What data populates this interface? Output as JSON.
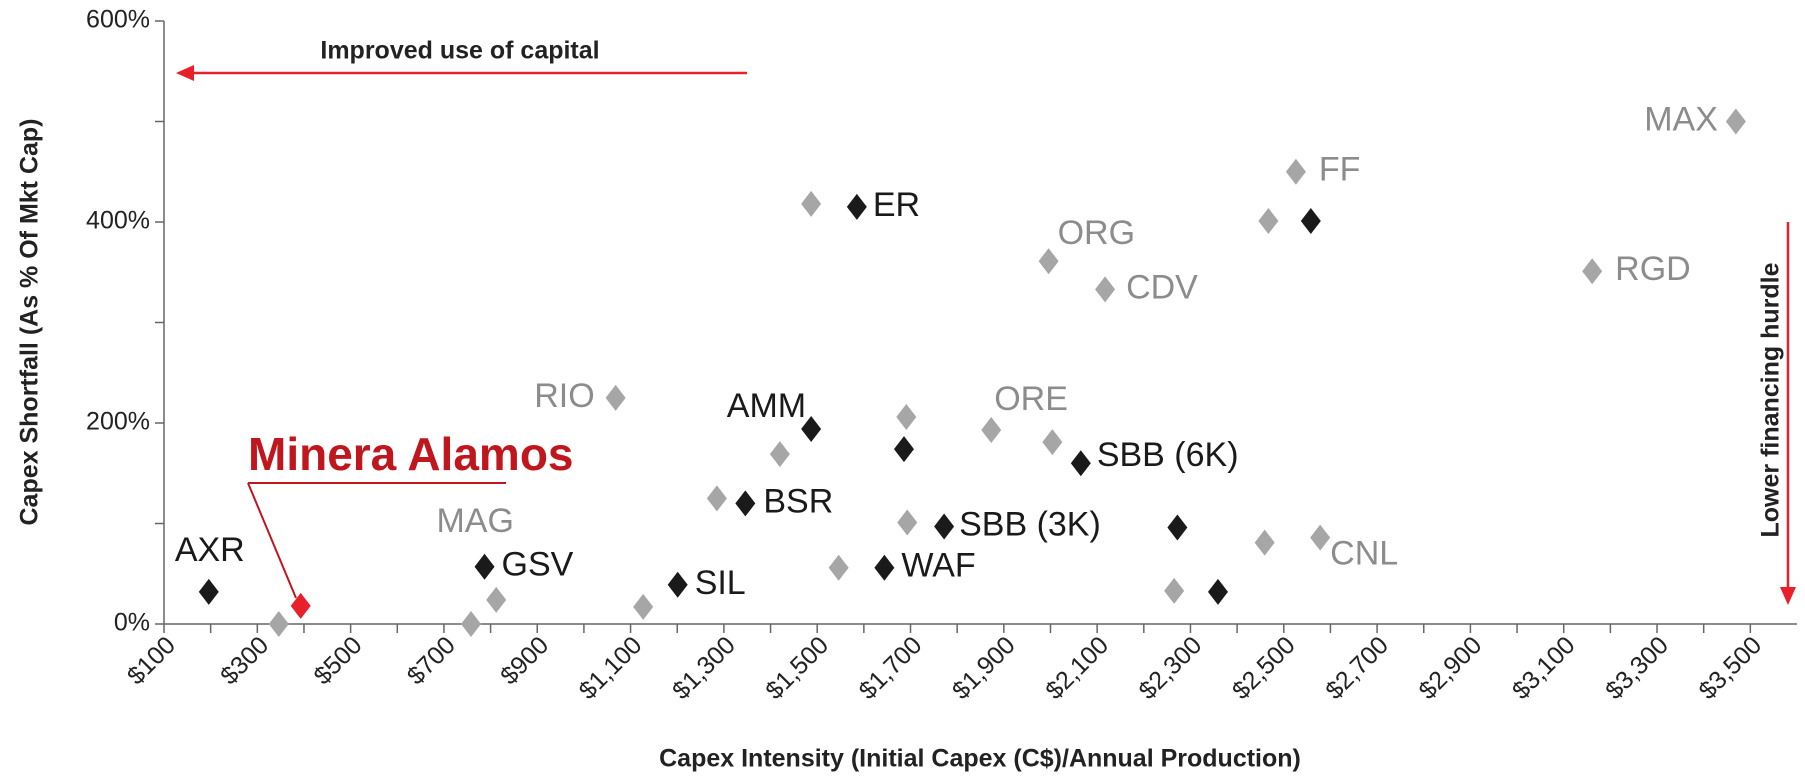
{
  "chart_data": {
    "type": "scatter",
    "xlabel": "Capex Intensity (Initial Capex (C$)/Annual Production)",
    "ylabel": "Capex Shortfall (As % Of Mkt Cap)",
    "xlim": [
      100,
      3600
    ],
    "ylim": [
      0,
      600
    ],
    "xticks": [
      {
        "value": 100,
        "label": "$100"
      },
      {
        "value": 300,
        "label": "$300"
      },
      {
        "value": 500,
        "label": "$500"
      },
      {
        "value": 700,
        "label": "$700"
      },
      {
        "value": 900,
        "label": "$900"
      },
      {
        "value": 1100,
        "label": "$1,100"
      },
      {
        "value": 1300,
        "label": "$1,300"
      },
      {
        "value": 1500,
        "label": "$1,500"
      },
      {
        "value": 1700,
        "label": "$1,700"
      },
      {
        "value": 1900,
        "label": "$1,900"
      },
      {
        "value": 2100,
        "label": "$2,100"
      },
      {
        "value": 2300,
        "label": "$2,300"
      },
      {
        "value": 2500,
        "label": "$2,500"
      },
      {
        "value": 2700,
        "label": "$2,700"
      },
      {
        "value": 2900,
        "label": "$2,900"
      },
      {
        "value": 3100,
        "label": "$3,100"
      },
      {
        "value": 3300,
        "label": "$3,300"
      },
      {
        "value": 3500,
        "label": "$3,500"
      }
    ],
    "yticks": [
      {
        "value": 0,
        "label": "0%"
      },
      {
        "value": 200,
        "label": "200%"
      },
      {
        "value": 400,
        "label": "400%"
      },
      {
        "value": 600,
        "label": "600%"
      }
    ],
    "annotations": [
      "Improved use of capital",
      "Lower financing hurdle"
    ],
    "series": [
      {
        "color": "#a6a6a6",
        "label_color": "#8c8c8c",
        "x": [
          346,
          758,
          812,
          1068,
          1127,
          1285,
          1420,
          1487,
          1546,
          1691,
          1693,
          1873,
          1996,
          2004,
          2117,
          2265,
          2459,
          2467,
          2526,
          2578,
          3161,
          3469
        ],
        "values": [
          0,
          0,
          24,
          225,
          17,
          125,
          169,
          418,
          56,
          206,
          101,
          193,
          361,
          181,
          333,
          33,
          81,
          401,
          450,
          86,
          351,
          500
        ],
        "labels": [
          null,
          null,
          "MAG",
          "RIO",
          null,
          null,
          null,
          null,
          null,
          null,
          null,
          "ORE",
          "ORG",
          null,
          "CDV",
          null,
          null,
          null,
          "FF",
          "CNL",
          "RGD",
          "MAX"
        ]
      },
      {
        "color": "#1a1a1a",
        "label_color": "#1a1a1a",
        "x": [
          196,
          787,
          1201,
          1346,
          1487,
          1585,
          1644,
          1686,
          1772,
          2065,
          2272,
          2359,
          2558
        ],
        "values": [
          32,
          57,
          39,
          120,
          194,
          415,
          56,
          174,
          97,
          160,
          96,
          32,
          401
        ],
        "labels": [
          "AXR",
          "GSV",
          "SIL",
          "BSR",
          "AMM",
          "ER",
          "WAF",
          null,
          "SBB (3K)",
          "SBB (6K)",
          null,
          null,
          null
        ]
      },
      {
        "color": "#e8202a",
        "label_color": "#c0161e",
        "x": [
          393
        ],
        "values": [
          18
        ],
        "labels": [
          "Minera Alamos"
        ]
      }
    ]
  }
}
